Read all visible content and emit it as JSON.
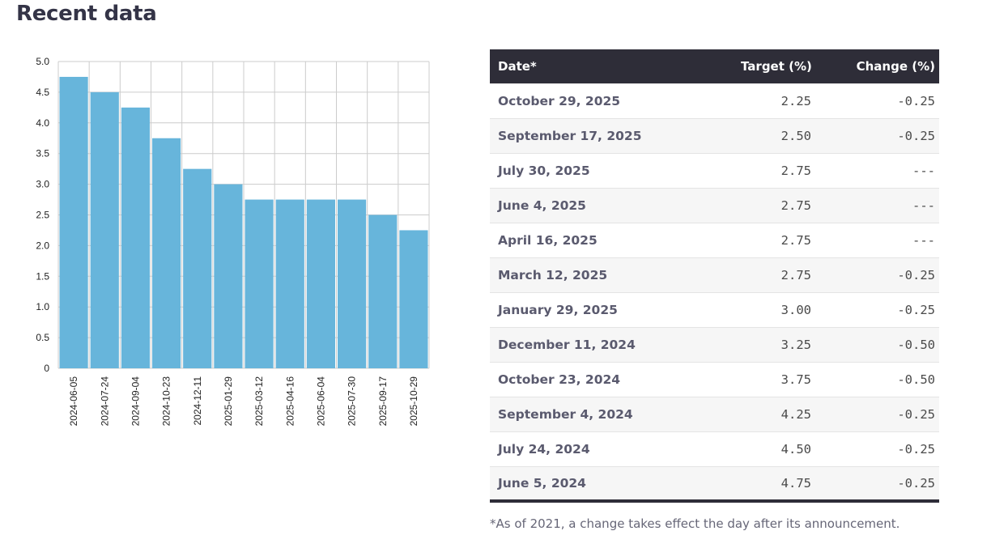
{
  "heading": "Recent data",
  "colors": {
    "bar": "#67b5db",
    "header_bg": "#2e2d38",
    "grid": "#cccccc"
  },
  "chart_data": {
    "type": "bar",
    "categories": [
      "2024-06-05",
      "2024-07-24",
      "2024-09-04",
      "2024-10-23",
      "2024-12-11",
      "2025-01-29",
      "2025-03-12",
      "2025-04-16",
      "2025-06-04",
      "2025-07-30",
      "2025-09-17",
      "2025-10-29"
    ],
    "values": [
      4.75,
      4.5,
      4.25,
      3.75,
      3.25,
      3.0,
      2.75,
      2.75,
      2.75,
      2.75,
      2.5,
      2.25
    ],
    "ylim": [
      0,
      5
    ],
    "yticks": [
      "0",
      "0.5",
      "1.0",
      "1.5",
      "2.0",
      "2.5",
      "3.0",
      "3.5",
      "4.0",
      "4.5",
      "5.0"
    ],
    "grid": true
  },
  "table": {
    "headers": {
      "date": "Date*",
      "target": "Target (%)",
      "change": "Change (%)"
    },
    "rows": [
      {
        "date": "October 29, 2025",
        "target": "2.25",
        "change": "-0.25"
      },
      {
        "date": "September 17, 2025",
        "target": "2.50",
        "change": "-0.25"
      },
      {
        "date": "July 30, 2025",
        "target": "2.75",
        "change": "---"
      },
      {
        "date": "June 4, 2025",
        "target": "2.75",
        "change": "---"
      },
      {
        "date": "April 16, 2025",
        "target": "2.75",
        "change": "---"
      },
      {
        "date": "March 12, 2025",
        "target": "2.75",
        "change": "-0.25"
      },
      {
        "date": "January 29, 2025",
        "target": "3.00",
        "change": "-0.25"
      },
      {
        "date": "December 11, 2024",
        "target": "3.25",
        "change": "-0.50"
      },
      {
        "date": "October 23, 2024",
        "target": "3.75",
        "change": "-0.50"
      },
      {
        "date": "September 4, 2024",
        "target": "4.25",
        "change": "-0.25"
      },
      {
        "date": "July 24, 2024",
        "target": "4.50",
        "change": "-0.25"
      },
      {
        "date": "June 5, 2024",
        "target": "4.75",
        "change": "-0.25"
      }
    ]
  },
  "footnote": "*As of 2021, a change takes effect the day after its announcement."
}
